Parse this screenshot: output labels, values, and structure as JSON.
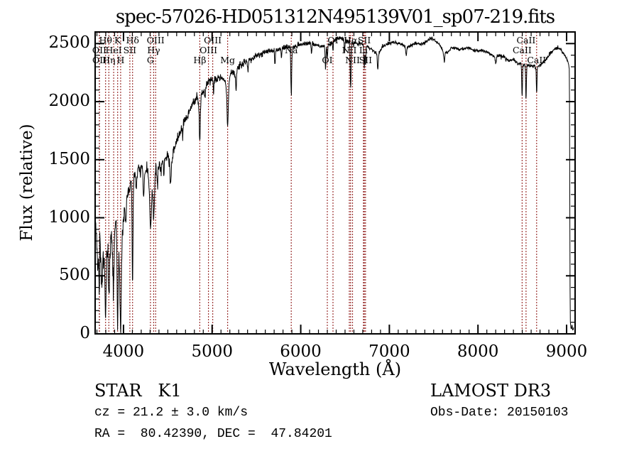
{
  "title": "spec-57026-HD051312N495139V01_sp07-219.fits",
  "colors": {
    "background": "#ffffff",
    "spectrum": "#000000",
    "frame": "#000000",
    "marker_line": "#9c3432"
  },
  "footer": {
    "class_label": "STAR   K1",
    "survey": "LAMOST DR3",
    "cz_line": "cz = 21.2 ± 3.0 km/s",
    "obs_date": "Obs-Date: 20150103",
    "coords_line": "RA =  80.42390, DEC =  47.84201"
  },
  "chart_data": {
    "type": "line",
    "title": "spec-57026-HD051312N495139V01_sp07-219.fits",
    "xlabel": "Wavelength (Å)",
    "ylabel": "Flux (relative)",
    "xlim": [
      3680,
      9096
    ],
    "ylim": [
      0,
      2600
    ],
    "x_ticks": [
      4000,
      5000,
      6000,
      7000,
      8000,
      9000
    ],
    "y_ticks": [
      0,
      500,
      1000,
      1500,
      2000,
      2500
    ],
    "x_minor_step": 100,
    "y_minor_step": 100,
    "grid": false,
    "line_markers": [
      {
        "label": "Hθ",
        "wl": 3798,
        "row": 1
      },
      {
        "label": "K",
        "wl": 3934,
        "row": 1
      },
      {
        "label": "Hδ",
        "wl": 4102,
        "row": 1
      },
      {
        "label": "OIII",
        "wl": 4363,
        "row": 1
      },
      {
        "label": "OIII",
        "wl": 5007,
        "row": 1
      },
      {
        "label": "OI",
        "wl": 6364,
        "row": 1
      },
      {
        "label": "Hα",
        "wl": 6563,
        "row": 1
      },
      {
        "label": "SII",
        "wl": 6717,
        "row": 1
      },
      {
        "label": "CaII",
        "wl": 8542,
        "row": 1
      },
      {
        "label": "OII",
        "wl": 3727,
        "row": 2
      },
      {
        "label": "HeI",
        "wl": 3889,
        "row": 2
      },
      {
        "label": "SII",
        "wl": 4072,
        "row": 2
      },
      {
        "label": "Hγ",
        "wl": 4340,
        "row": 2
      },
      {
        "label": "OIII",
        "wl": 4959,
        "row": 2
      },
      {
        "label": "Na",
        "wl": 5893,
        "row": 2
      },
      {
        "label": "NII",
        "wl": 6548,
        "row": 2
      },
      {
        "label": "Li",
        "wl": 6708,
        "row": 2
      },
      {
        "label": "CaII",
        "wl": 8498,
        "row": 2
      },
      {
        "label": "OII",
        "wl": 3729,
        "row": 3
      },
      {
        "label": "Hη",
        "wl": 3835,
        "row": 3
      },
      {
        "label": "H",
        "wl": 3968,
        "row": 3
      },
      {
        "label": "G",
        "wl": 4304,
        "row": 3
      },
      {
        "label": "Hβ",
        "wl": 4861,
        "row": 3
      },
      {
        "label": "Mg",
        "wl": 5175,
        "row": 3
      },
      {
        "label": "OI",
        "wl": 6300,
        "row": 3
      },
      {
        "label": "NII",
        "wl": 6584,
        "row": 3
      },
      {
        "label": "SII",
        "wl": 6731,
        "row": 3
      },
      {
        "label": "CaII",
        "wl": 8662,
        "row": 3
      }
    ],
    "continuum_anchors": [
      [
        3682,
        980
      ],
      [
        3695,
        850
      ],
      [
        3705,
        640
      ],
      [
        3715,
        560
      ],
      [
        3722,
        700
      ],
      [
        3728,
        480
      ],
      [
        3733,
        1060
      ],
      [
        3740,
        640
      ],
      [
        3748,
        520
      ],
      [
        3757,
        300
      ],
      [
        3765,
        560
      ],
      [
        3772,
        680
      ],
      [
        3782,
        640
      ],
      [
        3790,
        450
      ],
      [
        3800,
        380
      ],
      [
        3812,
        700
      ],
      [
        3822,
        780
      ],
      [
        3830,
        560
      ],
      [
        3840,
        520
      ],
      [
        3850,
        700
      ],
      [
        3858,
        860
      ],
      [
        3868,
        780
      ],
      [
        3878,
        620
      ],
      [
        3886,
        550
      ],
      [
        3895,
        800
      ],
      [
        3905,
        920
      ],
      [
        3915,
        980
      ],
      [
        3925,
        760
      ],
      [
        3933,
        420
      ],
      [
        3942,
        700
      ],
      [
        3950,
        680
      ],
      [
        3960,
        420
      ],
      [
        3968,
        280
      ],
      [
        3978,
        700
      ],
      [
        3990,
        850
      ],
      [
        4000,
        980
      ],
      [
        4015,
        1050
      ],
      [
        4030,
        1120
      ],
      [
        4050,
        1220
      ],
      [
        4070,
        1260
      ],
      [
        4085,
        1300
      ],
      [
        4110,
        1340
      ],
      [
        4130,
        1380
      ],
      [
        4150,
        1400
      ],
      [
        4170,
        1420
      ],
      [
        4190,
        1400
      ],
      [
        4210,
        1430
      ],
      [
        4230,
        1360
      ],
      [
        4250,
        1400
      ],
      [
        4270,
        1420
      ],
      [
        4290,
        1300
      ],
      [
        4310,
        1150
      ],
      [
        4330,
        1250
      ],
      [
        4345,
        1200
      ],
      [
        4360,
        1380
      ],
      [
        4380,
        1420
      ],
      [
        4400,
        1460
      ],
      [
        4420,
        1430
      ],
      [
        4440,
        1480
      ],
      [
        4460,
        1500
      ],
      [
        4480,
        1520
      ],
      [
        4500,
        1540
      ],
      [
        4520,
        1480
      ],
      [
        4540,
        1420
      ],
      [
        4560,
        1560
      ],
      [
        4580,
        1620
      ],
      [
        4600,
        1660
      ],
      [
        4630,
        1720
      ],
      [
        4660,
        1780
      ],
      [
        4690,
        1840
      ],
      [
        4720,
        1880
      ],
      [
        4750,
        1930
      ],
      [
        4780,
        1980
      ],
      [
        4810,
        2020
      ],
      [
        4830,
        2050
      ],
      [
        4861,
        1950
      ],
      [
        4880,
        2060
      ],
      [
        4900,
        2090
      ],
      [
        4920,
        2120
      ],
      [
        4940,
        2140
      ],
      [
        4960,
        2160
      ],
      [
        4980,
        2180
      ],
      [
        5000,
        2200
      ],
      [
        5030,
        2190
      ],
      [
        5060,
        2210
      ],
      [
        5090,
        2200
      ],
      [
        5120,
        2210
      ],
      [
        5150,
        2160
      ],
      [
        5175,
        2080
      ],
      [
        5200,
        2220
      ],
      [
        5230,
        2260
      ],
      [
        5260,
        2240
      ],
      [
        5290,
        2300
      ],
      [
        5320,
        2320
      ],
      [
        5350,
        2330
      ],
      [
        5380,
        2340
      ],
      [
        5420,
        2360
      ],
      [
        5460,
        2380
      ],
      [
        5500,
        2400
      ],
      [
        5540,
        2410
      ],
      [
        5580,
        2420
      ],
      [
        5620,
        2430
      ],
      [
        5660,
        2440
      ],
      [
        5700,
        2430
      ],
      [
        5740,
        2450
      ],
      [
        5780,
        2460
      ],
      [
        5820,
        2470
      ],
      [
        5860,
        2470
      ],
      [
        5900,
        2470
      ],
      [
        5940,
        2480
      ],
      [
        5980,
        2490
      ],
      [
        6020,
        2500
      ],
      [
        6060,
        2500
      ],
      [
        6100,
        2505
      ],
      [
        6140,
        2500
      ],
      [
        6180,
        2490
      ],
      [
        6220,
        2480
      ],
      [
        6260,
        2470
      ],
      [
        6300,
        2480
      ],
      [
        6340,
        2500
      ],
      [
        6380,
        2525
      ],
      [
        6420,
        2545
      ],
      [
        6460,
        2545
      ],
      [
        6500,
        2525
      ],
      [
        6540,
        2515
      ],
      [
        6580,
        2510
      ],
      [
        6620,
        2505
      ],
      [
        6660,
        2500
      ],
      [
        6700,
        2490
      ],
      [
        6740,
        2480
      ],
      [
        6790,
        2455
      ],
      [
        6830,
        2430
      ],
      [
        6870,
        2400
      ],
      [
        6910,
        2460
      ],
      [
        6950,
        2490
      ],
      [
        7000,
        2505
      ],
      [
        7050,
        2510
      ],
      [
        7100,
        2505
      ],
      [
        7150,
        2490
      ],
      [
        7200,
        2465
      ],
      [
        7250,
        2490
      ],
      [
        7300,
        2505
      ],
      [
        7350,
        2495
      ],
      [
        7400,
        2505
      ],
      [
        7440,
        2535
      ],
      [
        7480,
        2545
      ],
      [
        7520,
        2525
      ],
      [
        7560,
        2495
      ],
      [
        7600,
        2445
      ],
      [
        7650,
        2425
      ],
      [
        7700,
        2460
      ],
      [
        7750,
        2460
      ],
      [
        7800,
        2450
      ],
      [
        7850,
        2460
      ],
      [
        7900,
        2460
      ],
      [
        7950,
        2445
      ],
      [
        8000,
        2440
      ],
      [
        8050,
        2440
      ],
      [
        8100,
        2430
      ],
      [
        8150,
        2405
      ],
      [
        8200,
        2390
      ],
      [
        8250,
        2400
      ],
      [
        8300,
        2380
      ],
      [
        8350,
        2350
      ],
      [
        8400,
        2365
      ],
      [
        8450,
        2330
      ],
      [
        8500,
        2320
      ],
      [
        8550,
        2315
      ],
      [
        8600,
        2310
      ],
      [
        8650,
        2300
      ],
      [
        8700,
        2310
      ],
      [
        8750,
        2350
      ],
      [
        8800,
        2400
      ],
      [
        8850,
        2440
      ],
      [
        8900,
        2465
      ],
      [
        8930,
        2450
      ],
      [
        8960,
        2420
      ],
      [
        9000,
        2370
      ],
      [
        9020,
        2330
      ],
      [
        9032,
        2280
      ],
      [
        9040,
        120
      ],
      [
        9050,
        40
      ],
      [
        9060,
        70
      ],
      [
        9070,
        30
      ],
      [
        9080,
        60
      ]
    ],
    "absorption_features": [
      [
        3727,
        200,
        5
      ],
      [
        3798,
        260,
        5
      ],
      [
        3835,
        240,
        5
      ],
      [
        3889,
        260,
        5
      ],
      [
        3934,
        380,
        6
      ],
      [
        3968,
        330,
        6
      ],
      [
        4026,
        140,
        5
      ],
      [
        4102,
        900,
        5
      ],
      [
        4144,
        160,
        4
      ],
      [
        4227,
        220,
        5
      ],
      [
        4304,
        280,
        8
      ],
      [
        4340,
        260,
        5
      ],
      [
        4383,
        180,
        4
      ],
      [
        4455,
        140,
        4
      ],
      [
        4531,
        170,
        5
      ],
      [
        4668,
        120,
        4
      ],
      [
        4861,
        300,
        5
      ],
      [
        4920,
        100,
        4
      ],
      [
        5015,
        120,
        4
      ],
      [
        5175,
        300,
        7
      ],
      [
        5270,
        160,
        5
      ],
      [
        5406,
        100,
        4
      ],
      [
        5709,
        120,
        4
      ],
      [
        5782,
        90,
        4
      ],
      [
        5893,
        400,
        5
      ],
      [
        6122,
        90,
        4
      ],
      [
        6280,
        190,
        4
      ],
      [
        6300,
        100,
        4
      ],
      [
        6364,
        70,
        4
      ],
      [
        6495,
        110,
        4
      ],
      [
        6563,
        390,
        5
      ],
      [
        6717,
        200,
        4
      ],
      [
        6731,
        160,
        4
      ],
      [
        6870,
        120,
        5
      ],
      [
        7190,
        80,
        5
      ],
      [
        7620,
        90,
        6
      ],
      [
        8200,
        60,
        6
      ],
      [
        8498,
        280,
        4
      ],
      [
        8542,
        300,
        4
      ],
      [
        8662,
        230,
        4
      ]
    ],
    "noise_profile": [
      [
        3680,
        3900,
        130
      ],
      [
        3900,
        4050,
        100
      ],
      [
        4050,
        4350,
        62
      ],
      [
        4350,
        4700,
        55
      ],
      [
        4700,
        5100,
        48
      ],
      [
        5100,
        5600,
        40
      ],
      [
        5600,
        6000,
        26
      ],
      [
        6000,
        6600,
        24
      ],
      [
        6600,
        7200,
        20
      ],
      [
        7200,
        8000,
        17
      ],
      [
        8000,
        9035,
        18
      ],
      [
        9035,
        9090,
        15
      ]
    ],
    "noise_seed": 7,
    "sample_step_angstrom": 3
  }
}
